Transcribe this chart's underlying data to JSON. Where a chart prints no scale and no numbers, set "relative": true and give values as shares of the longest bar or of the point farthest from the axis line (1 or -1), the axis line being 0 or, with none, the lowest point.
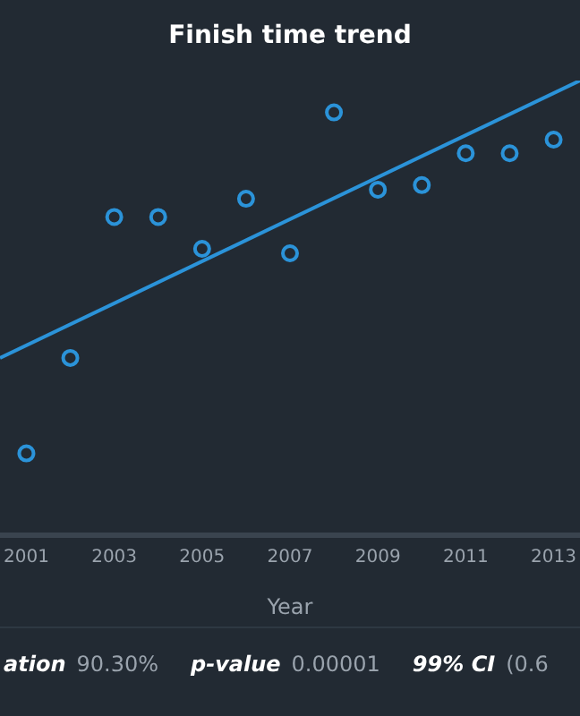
{
  "chart_data": {
    "type": "scatter",
    "title": "Finish time trend",
    "xlabel": "Year",
    "relative": true,
    "x": [
      2001,
      2002,
      2003,
      2004,
      2005,
      2006,
      2007,
      2008,
      2009,
      2010,
      2011,
      2012,
      2013
    ],
    "xlim": [
      2000.4,
      2013.6
    ],
    "xticks": [
      2001,
      2003,
      2005,
      2007,
      2009,
      2011,
      2013
    ],
    "grid": false,
    "legend": false,
    "series": [
      {
        "marker": "circle",
        "color": "#2b93d9",
        "values": [
          0.18,
          0.39,
          0.7,
          0.7,
          0.63,
          0.74,
          0.62,
          0.93,
          0.76,
          0.77,
          0.84,
          0.84,
          0.87
        ]
      },
      {
        "type": "line",
        "marker": "none",
        "color": "#2b93d9",
        "x": [
          2000.4,
          2013.6
        ],
        "values": [
          0.39,
          1
        ]
      }
    ],
    "annotations": [
      "ation",
      "90.30%",
      "p-value",
      "0.00001",
      "99% CI",
      "(0.6"
    ]
  }
}
